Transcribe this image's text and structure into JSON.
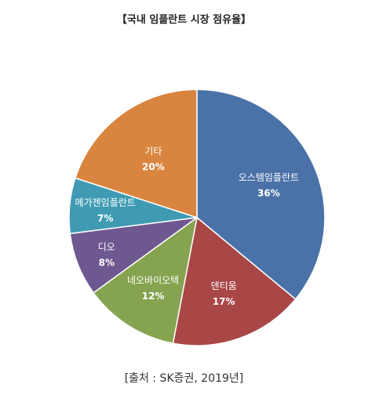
{
  "chart_data": {
    "type": "pie",
    "title": "【국내 임플란트 시장 점유율】",
    "slices": [
      {
        "label": "오스템임플란트",
        "value": 36,
        "value_label": "36%",
        "color": "#4a72a8"
      },
      {
        "label": "덴티움",
        "value": 17,
        "value_label": "17%",
        "color": "#a84746"
      },
      {
        "label": "네오바이오텍",
        "value": 12,
        "value_label": "12%",
        "color": "#86a350"
      },
      {
        "label": "디오",
        "value": 8,
        "value_label": "8%",
        "color": "#6e5890"
      },
      {
        "label": "메가젠임플란트",
        "value": 7,
        "value_label": "7%",
        "color": "#3f9bb3"
      },
      {
        "label": "기타",
        "value": 20,
        "value_label": "20%",
        "color": "#d9853f"
      }
    ]
  },
  "source": "[출처 : SK증권, 2019년]"
}
